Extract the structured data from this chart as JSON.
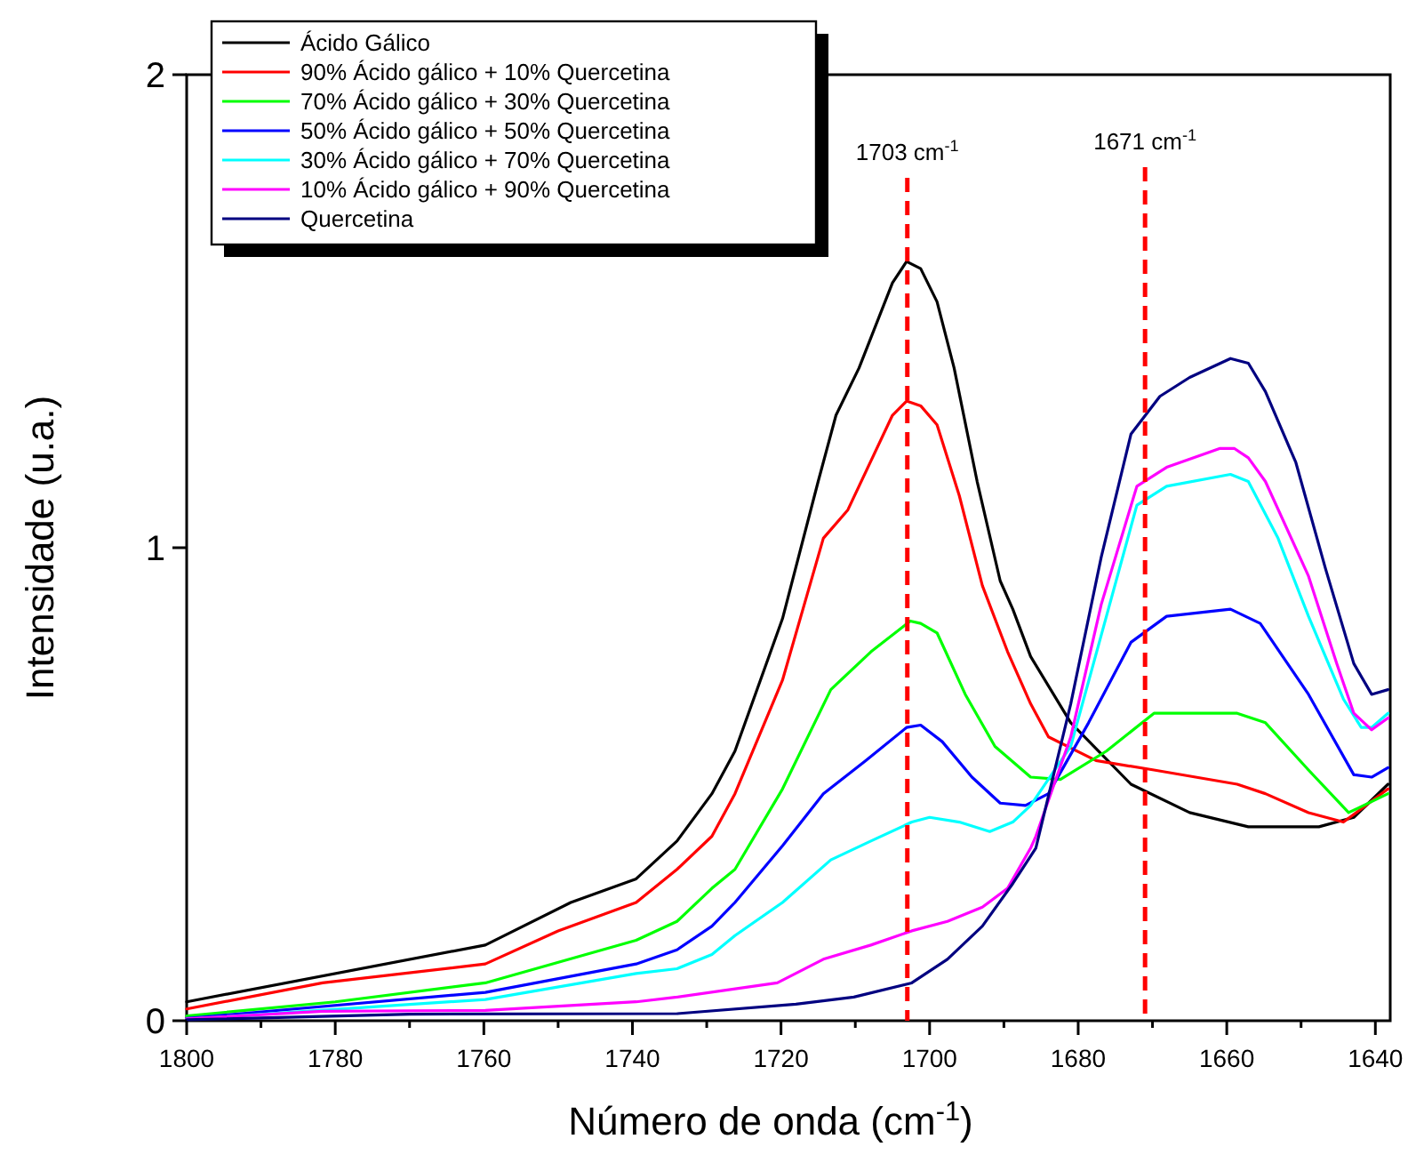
{
  "chart_data": {
    "type": "line",
    "xlabel": "Número de onda (cm$^{-1}$)",
    "ylabel": "Intensidade (u.a.)",
    "xlim": [
      1800,
      1638
    ],
    "ylim": [
      0,
      2
    ],
    "xticks": [
      1800,
      {
        "value": 1790,
        "label": null
      },
      1780,
      {
        "value": 1770,
        "label": null
      },
      1760,
      {
        "value": 1750,
        "label": null
      },
      1740,
      {
        "value": 1730,
        "label": null
      },
      1720,
      {
        "value": 1710,
        "label": null
      },
      1700,
      {
        "value": 1690,
        "label": null
      },
      1680,
      {
        "value": 1670,
        "label": null
      },
      1660,
      {
        "value": 1650,
        "label": null
      },
      1640
    ],
    "yticks": [
      0,
      1,
      2
    ],
    "legend": "top left",
    "grid": false,
    "ref_lines": [
      {
        "axis": "x",
        "value": 1703,
        "label": "1703 cm$^{-1}$",
        "color": "#ff0000",
        "line_style": "dashed"
      },
      {
        "axis": "x",
        "value": 1671,
        "label": "1671 cm$^{-1}$",
        "color": "#ff0000",
        "line_style": "dashed"
      }
    ],
    "series": [
      {
        "name": "Ácido Gálico",
        "color": "#000000",
        "x": [
          1800,
          1759.8,
          1748.3,
          1739.5,
          1734,
          1729.3,
          1726.2,
          1719.8,
          1715,
          1712.6,
          1709.5,
          1705,
          1703.1,
          1701.2,
          1699,
          1696.7,
          1693.6,
          1690.5,
          1688.8,
          1686.4,
          1681,
          1672.9,
          1665,
          1657.1,
          1647.6,
          1642.9,
          1638.3
        ],
        "values": [
          0.04,
          0.16,
          0.25,
          0.3,
          0.38,
          0.48,
          0.57,
          0.85,
          1.14,
          1.28,
          1.38,
          1.56,
          1.605,
          1.59,
          1.52,
          1.38,
          1.14,
          0.93,
          0.87,
          0.77,
          0.63,
          0.5,
          0.44,
          0.41,
          0.41,
          0.43,
          0.5
        ]
      },
      {
        "name": "90% Ácido gálico + 10% Quercetina",
        "color": "#ff0000",
        "x": [
          1800,
          1781.7,
          1759.8,
          1750,
          1739.5,
          1734,
          1729.3,
          1726.2,
          1719.8,
          1714.3,
          1711,
          1705,
          1703.1,
          1701.2,
          1699,
          1696,
          1692.9,
          1689.5,
          1686.4,
          1684,
          1677.6,
          1669.8,
          1658.6,
          1654.8,
          1649,
          1644.3,
          1638.3
        ],
        "values": [
          0.025,
          0.08,
          0.12,
          0.19,
          0.25,
          0.32,
          0.39,
          0.48,
          0.72,
          1.02,
          1.08,
          1.28,
          1.31,
          1.3,
          1.26,
          1.11,
          0.92,
          0.78,
          0.67,
          0.6,
          0.55,
          0.53,
          0.5,
          0.48,
          0.44,
          0.42,
          0.49
        ]
      },
      {
        "name": "70% Ácido gálico + 30% Quercetina",
        "color": "#00ff00",
        "x": [
          1800,
          1780,
          1759.8,
          1739.5,
          1734,
          1729.3,
          1726.2,
          1719.8,
          1713.3,
          1707.9,
          1702.6,
          1701.2,
          1699,
          1695.2,
          1691.2,
          1686.4,
          1682.4,
          1676.2,
          1669.8,
          1658.6,
          1654.8,
          1649,
          1643.6,
          1638.3
        ],
        "values": [
          0.01,
          0.04,
          0.08,
          0.17,
          0.21,
          0.28,
          0.32,
          0.49,
          0.7,
          0.78,
          0.845,
          0.84,
          0.82,
          0.69,
          0.58,
          0.515,
          0.51,
          0.57,
          0.65,
          0.65,
          0.63,
          0.53,
          0.44,
          0.48
        ]
      },
      {
        "name": "50% Ácido gálico + 50% Quercetina",
        "color": "#0000ff",
        "x": [
          1800,
          1759.8,
          1739.5,
          1734,
          1729.3,
          1726.2,
          1719.8,
          1714.3,
          1708.6,
          1703.1,
          1701.2,
          1698.3,
          1694.3,
          1690.5,
          1687.1,
          1684,
          1678.6,
          1672.9,
          1668.1,
          1659.5,
          1655.5,
          1649,
          1642.9,
          1640.5,
          1638.3
        ],
        "values": [
          0.005,
          0.06,
          0.12,
          0.15,
          0.2,
          0.25,
          0.37,
          0.48,
          0.55,
          0.62,
          0.625,
          0.59,
          0.515,
          0.46,
          0.455,
          0.48,
          0.63,
          0.8,
          0.855,
          0.87,
          0.84,
          0.69,
          0.52,
          0.515,
          0.535
        ]
      },
      {
        "name": "30% Ácido gálico + 70% Quercetina",
        "color": "#00ffff",
        "x": [
          1800,
          1759.8,
          1739.5,
          1734,
          1729.3,
          1726.2,
          1719.8,
          1713.3,
          1707.9,
          1702.4,
          1700,
          1696,
          1691.9,
          1688.8,
          1686.4,
          1681,
          1676.2,
          1672.1,
          1668.1,
          1659.5,
          1657.1,
          1653.1,
          1649,
          1644.3,
          1641.9,
          1640.5,
          1638.3
        ],
        "values": [
          0.003,
          0.045,
          0.1,
          0.11,
          0.14,
          0.18,
          0.25,
          0.34,
          0.38,
          0.42,
          0.43,
          0.42,
          0.4,
          0.42,
          0.455,
          0.58,
          0.855,
          1.09,
          1.13,
          1.155,
          1.14,
          1.02,
          0.855,
          0.68,
          0.62,
          0.62,
          0.65
        ]
      },
      {
        "name": "10% Ácido gálico + 90% Quercetina",
        "color": "#ff00ff",
        "x": [
          1800,
          1781.7,
          1759.8,
          1739.5,
          1734,
          1720.5,
          1714.3,
          1707.9,
          1702.4,
          1697.6,
          1692.9,
          1689.5,
          1686.4,
          1685.7,
          1681,
          1676.9,
          1672.1,
          1668.1,
          1660.9,
          1659,
          1657.1,
          1654.8,
          1649,
          1645.2,
          1642.9,
          1640.5,
          1638.3
        ],
        "values": [
          0.004,
          0.02,
          0.022,
          0.04,
          0.05,
          0.08,
          0.13,
          0.16,
          0.19,
          0.21,
          0.24,
          0.28,
          0.365,
          0.39,
          0.6,
          0.88,
          1.13,
          1.17,
          1.21,
          1.21,
          1.19,
          1.14,
          0.94,
          0.755,
          0.65,
          0.615,
          0.64
        ]
      },
      {
        "name": "Quercetina",
        "color": "#000080",
        "x": [
          1800,
          1770,
          1734,
          1718,
          1710.2,
          1702.4,
          1697.6,
          1692.9,
          1688.8,
          1685.7,
          1681,
          1676.9,
          1672.9,
          1669,
          1665,
          1659.5,
          1657.1,
          1654.8,
          1650.7,
          1646.7,
          1642.9,
          1640.5,
          1638.3
        ],
        "values": [
          0.002,
          0.014,
          0.015,
          0.035,
          0.05,
          0.08,
          0.13,
          0.2,
          0.29,
          0.365,
          0.67,
          0.98,
          1.24,
          1.32,
          1.36,
          1.4,
          1.39,
          1.33,
          1.18,
          0.955,
          0.755,
          0.69,
          0.7
        ]
      }
    ]
  }
}
